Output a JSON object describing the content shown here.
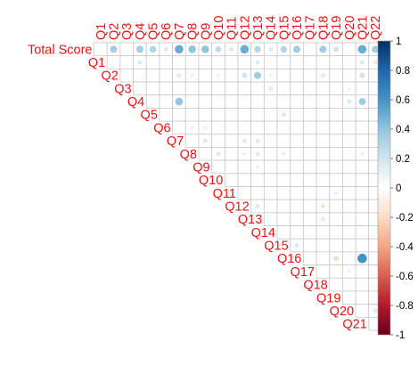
{
  "chart_data": {
    "type": "heatmap",
    "subtype": "upper-triangular correlation matrix (corrplot circles)",
    "row_labels": [
      "Total Score",
      "Q1",
      "Q2",
      "Q3",
      "Q4",
      "Q5",
      "Q6",
      "Q7",
      "Q8",
      "Q9",
      "Q10",
      "Q11",
      "Q12",
      "Q13",
      "Q14",
      "Q15",
      "Q16",
      "Q17",
      "Q18",
      "Q19",
      "Q20",
      "Q21"
    ],
    "col_labels": [
      "Q1",
      "Q2",
      "Q3",
      "Q4",
      "Q5",
      "Q6",
      "Q7",
      "Q8",
      "Q9",
      "Q10",
      "Q11",
      "Q12",
      "Q13",
      "Q14",
      "Q15",
      "Q16",
      "Q17",
      "Q18",
      "Q19",
      "Q20",
      "Q21",
      "Q22"
    ],
    "cells": [
      {
        "row": "Total Score",
        "col": "Q2",
        "r": 0.35
      },
      {
        "row": "Total Score",
        "col": "Q4",
        "r": 0.35
      },
      {
        "row": "Total Score",
        "col": "Q5",
        "r": 0.3
      },
      {
        "row": "Total Score",
        "col": "Q6",
        "r": 0.15
      },
      {
        "row": "Total Score",
        "col": "Q7",
        "r": 0.5
      },
      {
        "row": "Total Score",
        "col": "Q8",
        "r": 0.4
      },
      {
        "row": "Total Score",
        "col": "Q9",
        "r": 0.4
      },
      {
        "row": "Total Score",
        "col": "Q10",
        "r": 0.25
      },
      {
        "row": "Total Score",
        "col": "Q11",
        "r": 0.15
      },
      {
        "row": "Total Score",
        "col": "Q12",
        "r": 0.5
      },
      {
        "row": "Total Score",
        "col": "Q13",
        "r": 0.3
      },
      {
        "row": "Total Score",
        "col": "Q14",
        "r": 0.15
      },
      {
        "row": "Total Score",
        "col": "Q15",
        "r": 0.3
      },
      {
        "row": "Total Score",
        "col": "Q16",
        "r": 0.35
      },
      {
        "row": "Total Score",
        "col": "Q18",
        "r": 0.35
      },
      {
        "row": "Total Score",
        "col": "Q19",
        "r": 0.2
      },
      {
        "row": "Total Score",
        "col": "Q21",
        "r": 0.5
      },
      {
        "row": "Total Score",
        "col": "Q22",
        "r": 0.35
      },
      {
        "row": "Q1",
        "col": "Q4",
        "r": 0.15
      },
      {
        "row": "Q1",
        "col": "Q13",
        "r": 0.15
      },
      {
        "row": "Q1",
        "col": "Q21",
        "r": 0.15
      },
      {
        "row": "Q1",
        "col": "Q22",
        "r": -0.15
      },
      {
        "row": "Q2",
        "col": "Q7",
        "r": 0.15
      },
      {
        "row": "Q2",
        "col": "Q8",
        "r": 0.1
      },
      {
        "row": "Q2",
        "col": "Q10",
        "r": 0.1
      },
      {
        "row": "Q2",
        "col": "Q12",
        "r": 0.2
      },
      {
        "row": "Q2",
        "col": "Q13",
        "r": 0.35
      },
      {
        "row": "Q2",
        "col": "Q14",
        "r": 0.1
      },
      {
        "row": "Q2",
        "col": "Q18",
        "r": -0.15
      },
      {
        "row": "Q2",
        "col": "Q21",
        "r": 0.2
      },
      {
        "row": "Q3",
        "col": "Q14",
        "r": -0.15
      },
      {
        "row": "Q3",
        "col": "Q20",
        "r": 0.1
      },
      {
        "row": "Q4",
        "col": "Q7",
        "r": 0.4
      },
      {
        "row": "Q4",
        "col": "Q20",
        "r": 0.15
      },
      {
        "row": "Q4",
        "col": "Q21",
        "r": 0.35
      },
      {
        "row": "Q5",
        "col": "Q15",
        "r": 0.15
      },
      {
        "row": "Q6",
        "col": "Q8",
        "r": 0.1
      },
      {
        "row": "Q6",
        "col": "Q9",
        "r": 0.1
      },
      {
        "row": "Q7",
        "col": "Q9",
        "r": 0.15
      },
      {
        "row": "Q7",
        "col": "Q12",
        "r": 0.15
      },
      {
        "row": "Q7",
        "col": "Q13",
        "r": 0.15
      },
      {
        "row": "Q8",
        "col": "Q10",
        "r": 0.15
      },
      {
        "row": "Q8",
        "col": "Q12",
        "r": 0.1
      },
      {
        "row": "Q8",
        "col": "Q13",
        "r": 0.15
      },
      {
        "row": "Q8",
        "col": "Q15",
        "r": 0.1
      },
      {
        "row": "Q8",
        "col": "Q21",
        "r": 0.1
      },
      {
        "row": "Q9",
        "col": "Q13",
        "r": 0.1
      },
      {
        "row": "Q11",
        "col": "Q19",
        "r": 0.1
      },
      {
        "row": "Q12",
        "col": "Q13",
        "r": 0.15
      },
      {
        "row": "Q12",
        "col": "Q18",
        "r": -0.15
      },
      {
        "row": "Q13",
        "col": "Q18",
        "r": -0.15
      },
      {
        "row": "Q15",
        "col": "Q16",
        "r": 0.15
      },
      {
        "row": "Q16",
        "col": "Q19",
        "r": -0.2
      },
      {
        "row": "Q16",
        "col": "Q21",
        "r": 0.6
      },
      {
        "row": "Q17",
        "col": "Q20",
        "r": 0.1
      },
      {
        "row": "Q20",
        "col": "Q22",
        "r": 0.15
      }
    ],
    "colorbar": {
      "ticks": [
        1,
        0.8,
        0.6,
        0.4,
        0.2,
        0,
        -0.2,
        -0.4,
        -0.6,
        -0.8,
        -1
      ],
      "tick_labels": [
        "1",
        "0.8",
        "0.6",
        "0.4",
        "0.2",
        "0",
        "-0.2",
        "-0.4",
        "-0.6",
        "-0.8",
        "-1"
      ],
      "range": [
        -1,
        1
      ],
      "palette": [
        "#67001F",
        "#B2182B",
        "#D6604D",
        "#F4A582",
        "#FDDBC7",
        "#FFFFFF",
        "#D1E5F0",
        "#92C5DE",
        "#4393C3",
        "#2166AC",
        "#053061"
      ]
    },
    "label_color": "#EE1111",
    "grid": true,
    "legend": "right"
  }
}
